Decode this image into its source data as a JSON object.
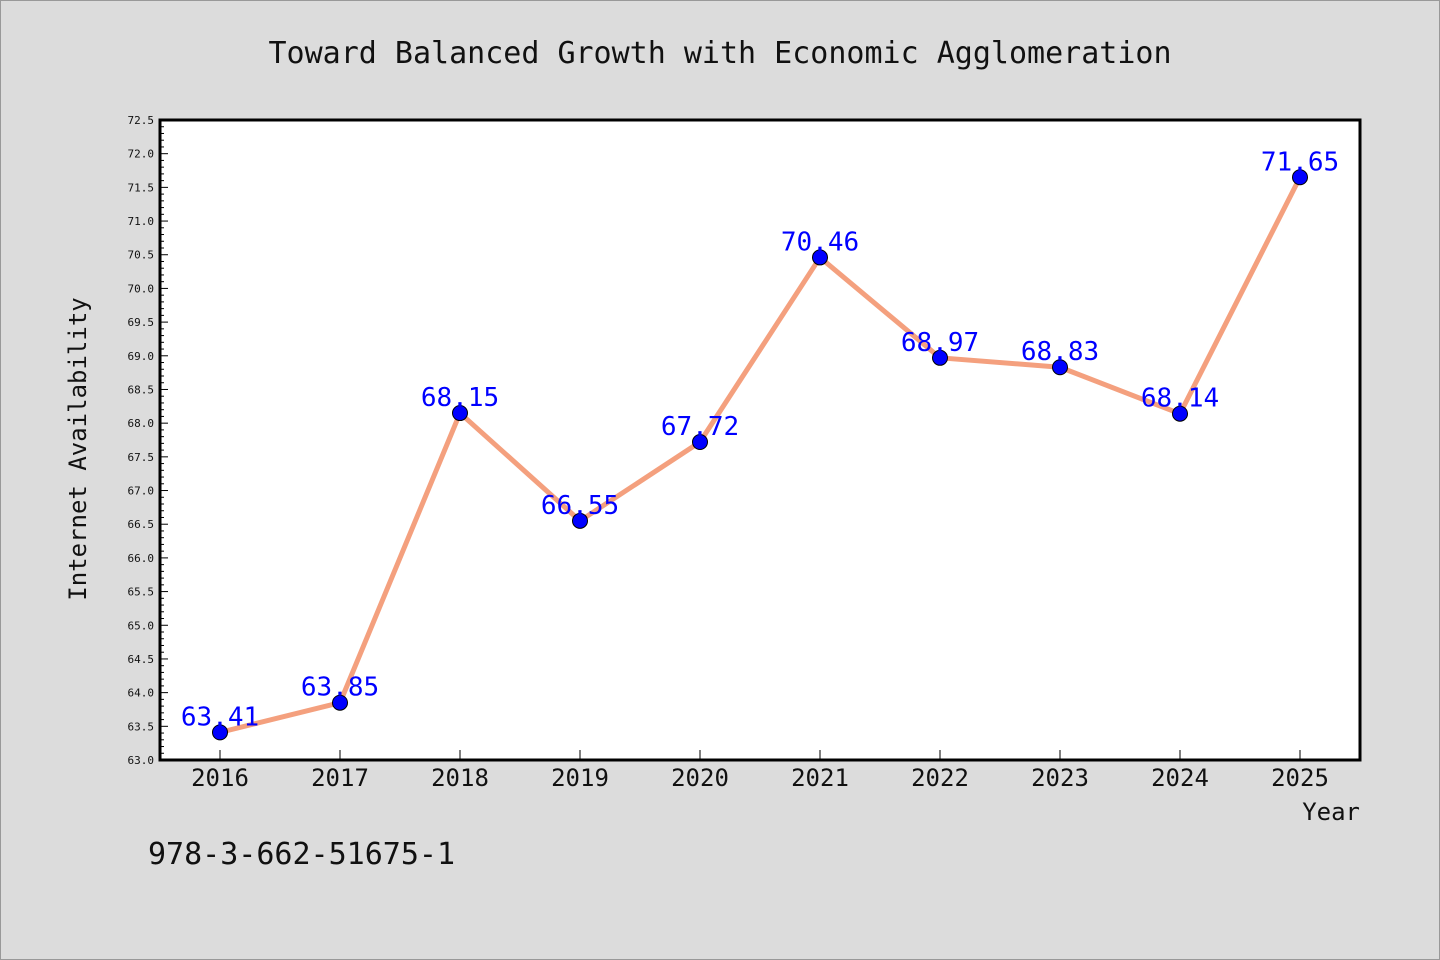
{
  "chart_data": {
    "type": "line",
    "title": "Toward Balanced Growth with Economic Agglomeration",
    "xlabel": "Year",
    "ylabel": "Internet Availability",
    "categories": [
      "2016",
      "2017",
      "2018",
      "2019",
      "2020",
      "2021",
      "2022",
      "2023",
      "2024",
      "2025"
    ],
    "series": [
      {
        "values": [
          63.41,
          63.85,
          68.15,
          66.55,
          67.72,
          70.46,
          68.97,
          68.83,
          68.14,
          71.65
        ],
        "labels": [
          "63.41",
          "63.85",
          "68.15",
          "66.55",
          "67.72",
          "70.46",
          "68.97",
          "68.83",
          "68.14",
          "71.65"
        ],
        "line_color": "#f4a07e",
        "marker_color": "#0000ff"
      }
    ],
    "ylim": [
      63.0,
      72.5
    ],
    "yticks": [
      "63.0",
      "63.5",
      "64.0",
      "64.5",
      "65.0",
      "65.5",
      "66.0",
      "66.5",
      "67.0",
      "67.5",
      "68.0",
      "68.5",
      "69.0",
      "69.5",
      "70.0",
      "70.5",
      "71.0",
      "71.5",
      "72.0",
      "72.5"
    ],
    "grid": false,
    "legend": "none"
  },
  "footer": {
    "isbn": "978-3-662-51675-1"
  },
  "colors": {
    "background": "#dcdcdc",
    "plot_area": "#ffffff",
    "line": "#f4a07e",
    "marker": "#0000ff",
    "data_label": "#0000ff"
  }
}
